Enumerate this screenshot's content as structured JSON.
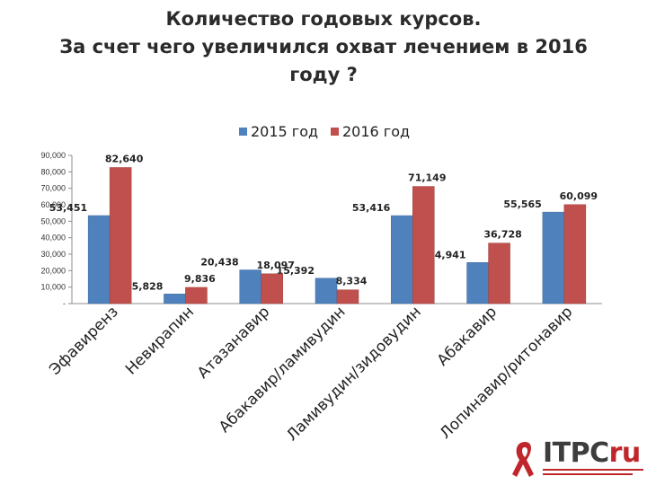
{
  "title": {
    "line1": "Количество годовых курсов.",
    "line2": "За счет чего увеличился охват лечением в 2016",
    "line3": "году ?"
  },
  "logo": {
    "brand_main": "ITPC",
    "brand_accent": "ru"
  },
  "chart_data": {
    "type": "bar",
    "categories": [
      "Эфавиренз",
      "Невирапин",
      "Атазанавир",
      "Абакавир/ламивудин",
      "Ламивудин/зидовудин",
      "Абакавир",
      "Лопинавир/ритонавир"
    ],
    "series": [
      {
        "name": "2015 год",
        "color": "#4f81bd",
        "values": [
          53451,
          5828,
          20438,
          15392,
          53416,
          24941,
          55565
        ],
        "labels": [
          "53,451",
          "5,828",
          "20,438",
          "15,392",
          "53,416",
          "24,941",
          "55,565"
        ]
      },
      {
        "name": "2016 год",
        "color": "#c0504d",
        "values": [
          82640,
          9836,
          18097,
          8334,
          71149,
          36728,
          60099
        ],
        "labels": [
          "82,640",
          "9,836",
          "18,097",
          "8,334",
          "71,149",
          "36,728",
          "60,099"
        ]
      }
    ],
    "yticks": [
      "-",
      "10,000",
      "20,000",
      "30,000",
      "40,000",
      "50,000",
      "60,000",
      "70,000",
      "80,000",
      "90,000"
    ],
    "ylim": [
      0,
      90000
    ],
    "grid": false,
    "legend_position": "top-center"
  }
}
